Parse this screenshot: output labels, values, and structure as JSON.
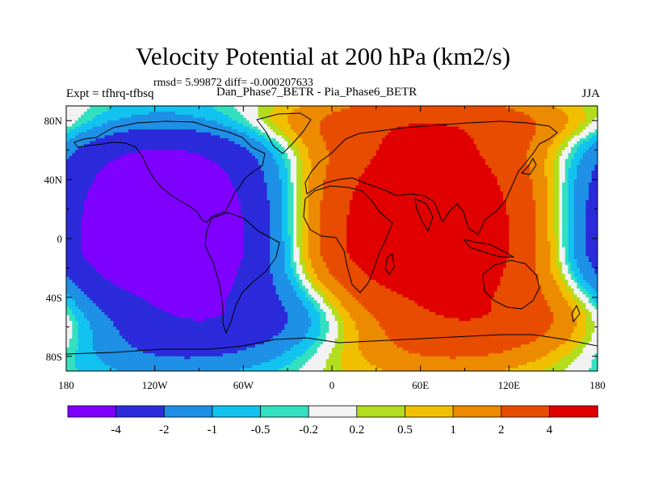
{
  "figure": {
    "title": "Velocity Potential at 200 hPa (km2/s)",
    "stats": "rmsd= 5.99872 diff= -0.000207633",
    "expt": "Expt = tfhrq-tfbsq",
    "subtitle": "Dan_Phase7_BETR - Pia_Phase6_BETR",
    "season": "JJA"
  },
  "chart_data": {
    "type": "heatmap",
    "title": "Velocity Potential at 200 hPa (km2/s)",
    "projection": "cylindrical equidistant, centered on 0",
    "xlim": [
      -180,
      180
    ],
    "ylim": [
      -90,
      90
    ],
    "x_ticks": [
      {
        "value": -180,
        "label": "180"
      },
      {
        "value": -120,
        "label": "120W"
      },
      {
        "value": -60,
        "label": "60W"
      },
      {
        "value": 0,
        "label": "0"
      },
      {
        "value": 60,
        "label": "60E"
      },
      {
        "value": 120,
        "label": "120E"
      },
      {
        "value": 180,
        "label": "180"
      }
    ],
    "y_ticks": [
      {
        "value": 80,
        "label": "80N"
      },
      {
        "value": 40,
        "label": "40N"
      },
      {
        "value": 0,
        "label": "0"
      },
      {
        "value": -40,
        "label": "40S"
      },
      {
        "value": -80,
        "label": "80S"
      }
    ],
    "contour_levels": [
      -4,
      -2,
      -1,
      -0.5,
      -0.2,
      0.2,
      0.5,
      1,
      2,
      4
    ],
    "level_labels": [
      "-4",
      "-2",
      "-1",
      "-0.5",
      "-0.2",
      "0.2",
      "0.5",
      "1",
      "2",
      "4"
    ],
    "colors": [
      "#7f00ff",
      "#2b2bdb",
      "#1e90e6",
      "#12c3f0",
      "#33e0c0",
      "#f2f2f2",
      "#b2dd1e",
      "#f0c000",
      "#ec8a00",
      "#e84c00",
      "#e00000"
    ],
    "field_description": "Negative velocity potential (purple/blue) over the eastern Pacific and Americas centered near 130W 10S, positive (red) over Africa, Asia and the Indian Ocean centered near 60E 10N; a secondary negative center over the far western Pacific (160E-180)."
  }
}
